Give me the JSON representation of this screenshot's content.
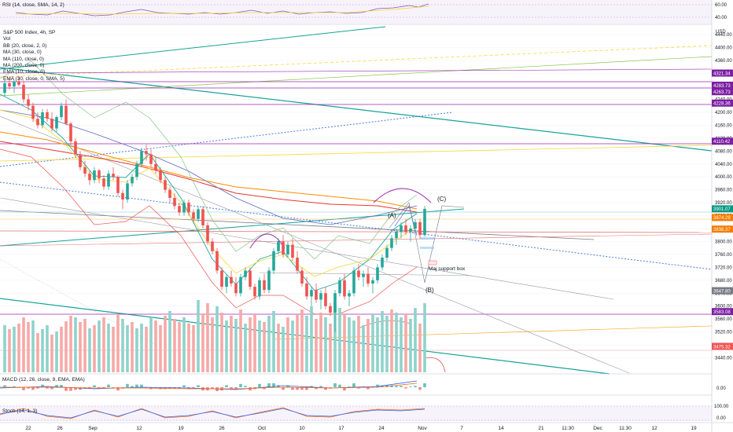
{
  "colors": {
    "up": "#26a69a",
    "down": "#ef5350",
    "vol_up": "#8fd3cb",
    "vol_down": "#f6a9a7",
    "teal_line": "#17a398",
    "dotted_blue": "#4c7be0",
    "purple": "#9c27b0",
    "red_ma": "#e53935",
    "orange_ma": "#fb8c00",
    "yellow": "#f9d72f",
    "grey": "#9598a1",
    "tag_purple": "#7b1fa2",
    "tag_green": "#089981",
    "tag_orange": "#f57c00",
    "tag_grey": "#787b86"
  },
  "legend": {
    "title": "S&P 500 Index, 4h, SP",
    "lines": [
      "Vol",
      "BB (20, close, 2, 0)",
      "MA (30, close, 0)",
      "MA (110, close, 0)",
      "MA (200, close, 0)",
      "EMA (10, close, 0)",
      "EMA (30, close, 0, SMA, 5)"
    ]
  },
  "rsi": {
    "label": "RSI (14, close, SMA, 14, 2)",
    "ticks": [
      "60.00",
      "40.00"
    ]
  },
  "macd": {
    "label": "MACD (12, 26, close, 9, EMA, EMA)",
    "ticks": [
      "0.00"
    ]
  },
  "stoch": {
    "label": "Stoch (14, 1, 3)",
    "ticks": [
      "100.00",
      "0.00"
    ]
  },
  "annotations": {
    "c_label": "(C)",
    "a_label": "(A)",
    "b_label": "(B)",
    "support_box": "Maj support box"
  },
  "chart_data": {
    "type": "candlestick",
    "title": "S&P 500 Index, 4h, SP",
    "y_unit": "USD",
    "ylim": [
      3400,
      4460
    ],
    "y_ticks": [
      4440,
      4400,
      4360,
      4320,
      4280,
      4240,
      4200,
      4160,
      4120,
      4080,
      4040,
      4000,
      3960,
      3920,
      3880,
      3840,
      3800,
      3760,
      3720,
      3680,
      3640,
      3600,
      3560,
      3520,
      3480,
      3440
    ],
    "x_tick_labels": [
      "22",
      "26",
      "Sep",
      "12",
      "19",
      "26",
      "Oct",
      "10",
      "17",
      "24",
      "Nov",
      "7",
      "14",
      "21",
      "11:30",
      "Dec",
      "11:30",
      "12",
      "19"
    ],
    "price_tags": [
      {
        "value": "4321.34",
        "color": "#7b1fa2"
      },
      {
        "value": "4283.73",
        "color": "#7b1fa2"
      },
      {
        "value": "4263.73",
        "color": "#7b1fa2"
      },
      {
        "value": "4228.36",
        "color": "#7b1fa2"
      },
      {
        "value": "4110.42",
        "color": "#7b1fa2"
      },
      {
        "value": "3901.07",
        "color": "#089981"
      },
      {
        "value": "3874.29",
        "color": "#f57c00"
      },
      {
        "value": "3838.37",
        "color": "#f57c00"
      },
      {
        "value": "3647.80",
        "color": "#787b86"
      },
      {
        "value": "3583.08",
        "color": "#7b1fa2"
      },
      {
        "value": "3475.32",
        "color": "#ef5350"
      }
    ],
    "candles": [
      [
        4260,
        4300,
        4250,
        4290
      ],
      [
        4290,
        4305,
        4270,
        4280
      ],
      [
        4280,
        4300,
        4260,
        4295
      ],
      [
        4295,
        4310,
        4280,
        4285
      ],
      [
        4285,
        4295,
        4230,
        4240
      ],
      [
        4240,
        4255,
        4205,
        4220
      ],
      [
        4220,
        4230,
        4170,
        4180
      ],
      [
        4180,
        4200,
        4150,
        4160
      ],
      [
        4160,
        4210,
        4150,
        4200
      ],
      [
        4200,
        4210,
        4170,
        4180
      ],
      [
        4180,
        4200,
        4140,
        4150
      ],
      [
        4150,
        4190,
        4140,
        4185
      ],
      [
        4185,
        4230,
        4175,
        4220
      ],
      [
        4220,
        4240,
        4160,
        4165
      ],
      [
        4165,
        4170,
        4100,
        4110
      ],
      [
        4110,
        4120,
        4060,
        4070
      ],
      [
        4070,
        4080,
        4020,
        4030
      ],
      [
        4030,
        4050,
        4000,
        4010
      ],
      [
        4010,
        4020,
        3975,
        3990
      ],
      [
        3990,
        4030,
        3980,
        4020
      ],
      [
        4020,
        4025,
        3980,
        3995
      ],
      [
        3995,
        4005,
        3960,
        3970
      ],
      [
        3970,
        4020,
        3960,
        4010
      ],
      [
        4010,
        4030,
        3990,
        4000
      ],
      [
        4000,
        4005,
        3940,
        3950
      ],
      [
        3950,
        3960,
        3900,
        3930
      ],
      [
        3930,
        3990,
        3920,
        3980
      ],
      [
        3980,
        4010,
        3970,
        4000
      ],
      [
        4000,
        4050,
        3990,
        4040
      ],
      [
        4040,
        4090,
        4030,
        4080
      ],
      [
        4080,
        4100,
        4050,
        4070
      ],
      [
        4070,
        4085,
        4030,
        4040
      ],
      [
        4040,
        4060,
        4010,
        4020
      ],
      [
        4020,
        4030,
        3980,
        3990
      ],
      [
        3990,
        4000,
        3950,
        3960
      ],
      [
        3960,
        3970,
        3920,
        3935
      ],
      [
        3935,
        3950,
        3900,
        3910
      ],
      [
        3910,
        3920,
        3880,
        3890
      ],
      [
        3890,
        3930,
        3880,
        3920
      ],
      [
        3920,
        3930,
        3880,
        3890
      ],
      [
        3890,
        3900,
        3860,
        3870
      ],
      [
        3870,
        3910,
        3860,
        3900
      ],
      [
        3900,
        3910,
        3840,
        3850
      ],
      [
        3850,
        3860,
        3790,
        3800
      ],
      [
        3800,
        3810,
        3760,
        3770
      ],
      [
        3770,
        3780,
        3700,
        3710
      ],
      [
        3710,
        3720,
        3650,
        3660
      ],
      [
        3660,
        3700,
        3640,
        3690
      ],
      [
        3690,
        3710,
        3660,
        3670
      ],
      [
        3670,
        3690,
        3630,
        3640
      ],
      [
        3640,
        3700,
        3630,
        3690
      ],
      [
        3690,
        3720,
        3680,
        3710
      ],
      [
        3710,
        3720,
        3650,
        3660
      ],
      [
        3660,
        3670,
        3620,
        3630
      ],
      [
        3630,
        3690,
        3620,
        3680
      ],
      [
        3680,
        3700,
        3640,
        3650
      ],
      [
        3650,
        3720,
        3640,
        3710
      ],
      [
        3710,
        3780,
        3700,
        3770
      ],
      [
        3770,
        3810,
        3760,
        3800
      ],
      [
        3800,
        3820,
        3750,
        3760
      ],
      [
        3760,
        3800,
        3750,
        3790
      ],
      [
        3790,
        3810,
        3740,
        3750
      ],
      [
        3750,
        3770,
        3700,
        3710
      ],
      [
        3710,
        3720,
        3660,
        3670
      ],
      [
        3670,
        3690,
        3620,
        3630
      ],
      [
        3630,
        3660,
        3600,
        3650
      ],
      [
        3650,
        3670,
        3610,
        3620
      ],
      [
        3620,
        3650,
        3590,
        3640
      ],
      [
        3640,
        3660,
        3590,
        3600
      ],
      [
        3600,
        3610,
        3570,
        3580
      ],
      [
        3580,
        3650,
        3520,
        3640
      ],
      [
        3640,
        3690,
        3630,
        3680
      ],
      [
        3680,
        3700,
        3620,
        3630
      ],
      [
        3630,
        3650,
        3600,
        3640
      ],
      [
        3640,
        3720,
        3630,
        3710
      ],
      [
        3710,
        3730,
        3680,
        3690
      ],
      [
        3690,
        3710,
        3660,
        3700
      ],
      [
        3700,
        3720,
        3660,
        3670
      ],
      [
        3670,
        3690,
        3640,
        3680
      ],
      [
        3680,
        3730,
        3670,
        3720
      ],
      [
        3720,
        3760,
        3710,
        3750
      ],
      [
        3750,
        3790,
        3740,
        3780
      ],
      [
        3780,
        3820,
        3770,
        3810
      ],
      [
        3810,
        3840,
        3790,
        3830
      ],
      [
        3830,
        3860,
        3810,
        3850
      ],
      [
        3850,
        3870,
        3820,
        3830
      ],
      [
        3830,
        3850,
        3800,
        3840
      ],
      [
        3840,
        3870,
        3830,
        3860
      ],
      [
        3860,
        3870,
        3810,
        3820
      ],
      [
        3820,
        3910,
        3815,
        3901
      ]
    ],
    "volumes": [
      [
        60,
        1
      ],
      [
        55,
        0
      ],
      [
        58,
        1
      ],
      [
        62,
        0
      ],
      [
        70,
        0
      ],
      [
        64,
        0
      ],
      [
        66,
        1
      ],
      [
        50,
        0
      ],
      [
        55,
        1
      ],
      [
        60,
        1
      ],
      [
        48,
        0
      ],
      [
        52,
        1
      ],
      [
        58,
        0
      ],
      [
        65,
        0
      ],
      [
        72,
        0
      ],
      [
        70,
        1
      ],
      [
        64,
        0
      ],
      [
        68,
        0
      ],
      [
        56,
        1
      ],
      [
        60,
        0
      ],
      [
        66,
        1
      ],
      [
        70,
        0
      ],
      [
        62,
        1
      ],
      [
        58,
        0
      ],
      [
        74,
        0
      ],
      [
        68,
        1
      ],
      [
        60,
        1
      ],
      [
        64,
        0
      ],
      [
        56,
        1
      ],
      [
        62,
        1
      ],
      [
        58,
        0
      ],
      [
        70,
        1
      ],
      [
        66,
        0
      ],
      [
        60,
        0
      ],
      [
        72,
        0
      ],
      [
        78,
        1
      ],
      [
        68,
        0
      ],
      [
        64,
        0
      ],
      [
        70,
        1
      ],
      [
        62,
        0
      ],
      [
        60,
        0
      ],
      [
        92,
        1
      ],
      [
        75,
        0
      ],
      [
        88,
        0
      ],
      [
        70,
        0
      ],
      [
        84,
        1
      ],
      [
        76,
        0
      ],
      [
        66,
        1
      ],
      [
        72,
        0
      ],
      [
        68,
        1
      ],
      [
        80,
        0
      ],
      [
        62,
        1
      ],
      [
        70,
        0
      ],
      [
        74,
        0
      ],
      [
        66,
        1
      ],
      [
        64,
        0
      ],
      [
        72,
        1
      ],
      [
        78,
        1
      ],
      [
        62,
        0
      ],
      [
        58,
        1
      ],
      [
        70,
        0
      ],
      [
        66,
        1
      ],
      [
        74,
        0
      ],
      [
        80,
        0
      ],
      [
        72,
        1
      ],
      [
        84,
        1
      ],
      [
        68,
        0
      ],
      [
        76,
        0
      ],
      [
        70,
        1
      ],
      [
        62,
        0
      ],
      [
        90,
        1
      ],
      [
        82,
        1
      ],
      [
        74,
        0
      ],
      [
        70,
        1
      ],
      [
        66,
        1
      ],
      [
        72,
        0
      ],
      [
        60,
        1
      ],
      [
        68,
        0
      ],
      [
        74,
        1
      ],
      [
        70,
        1
      ],
      [
        78,
        1
      ],
      [
        72,
        1
      ],
      [
        80,
        0
      ],
      [
        76,
        1
      ],
      [
        70,
        1
      ],
      [
        74,
        0
      ],
      [
        68,
        1
      ],
      [
        82,
        1
      ],
      [
        62,
        0
      ],
      [
        88,
        1
      ]
    ]
  }
}
